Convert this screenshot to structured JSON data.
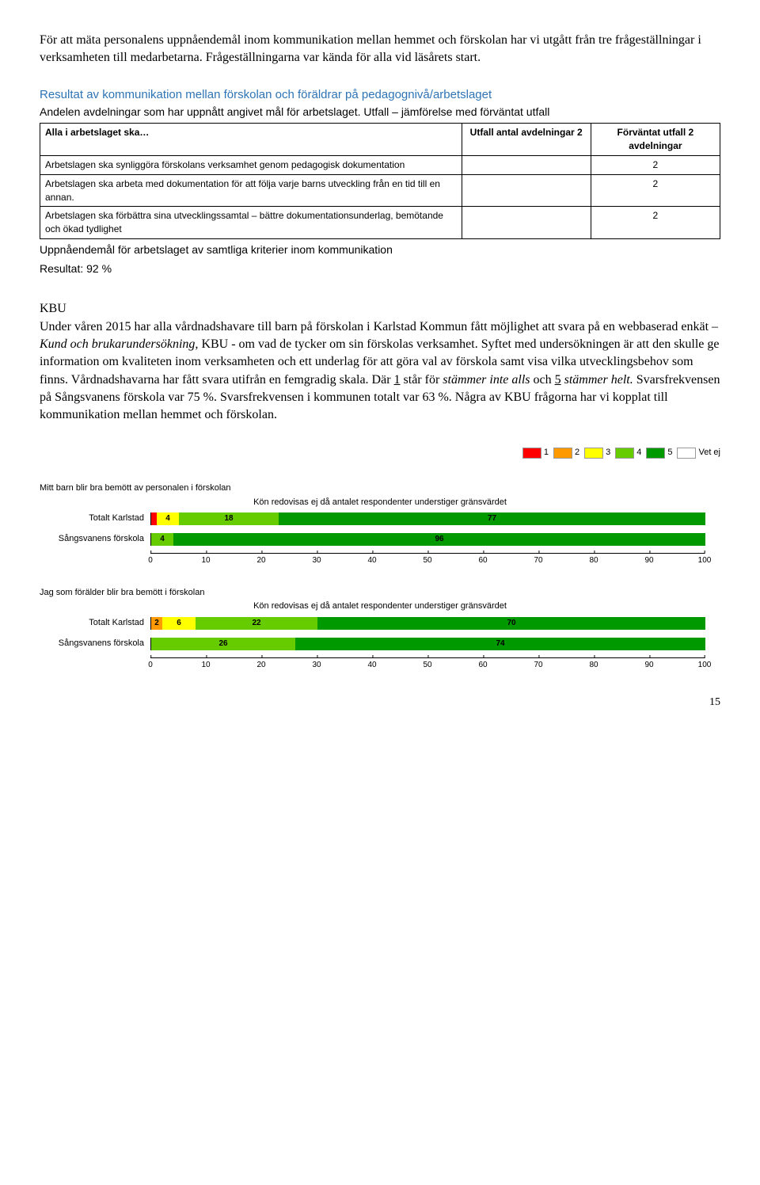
{
  "intro_para": "För att mäta personalens uppnåendemål inom kommunikation mellan hemmet och förskolan har vi utgått från tre frågeställningar i verksamheten till medarbetarna. Frågeställningarna var kända för alla vid läsårets start.",
  "table_heading": "Resultat av kommunikation mellan förskolan och föräldrar på pedagognivå/arbetslaget",
  "table_subline": "Andelen avdelningar som har uppnått angivet mål för arbetslaget. Utfall – jämförelse med förväntat utfall",
  "table": {
    "header": {
      "c1": "Alla i arbetslaget ska…",
      "c2": "Utfall antal avdelningar 2",
      "c3": "Förväntat utfall 2 avdelningar"
    },
    "rows": [
      {
        "c1": "Arbetslagen ska synliggöra förskolans verksamhet genom pedagogisk dokumentation",
        "c2": "",
        "c3": "2"
      },
      {
        "c1": "Arbetslagen ska arbeta med dokumentation för att följa varje barns utveckling från en tid till en annan.",
        "c2": "",
        "c3": "2"
      },
      {
        "c1": "Arbetslagen ska förbättra sina utvecklingssamtal – bättre dokumentationsunderlag, bemötande och ökad tydlighet",
        "c2": "",
        "c3": "2"
      }
    ]
  },
  "result_line1": "Uppnåendemål för arbetslaget av samtliga kriterier inom kommunikation",
  "result_line2": "Resultat: 92 %",
  "kbu": {
    "label": "KBU",
    "text_parts": [
      "Under våren 2015 har alla vårdnadshavare till barn på förskolan i Karlstad Kommun fått möjlighet att svara på en webbaserad enkät – ",
      "Kund och brukarundersökning, ",
      "KBU - om vad de tycker om sin förskolas verksamhet. Syftet med undersökningen är att den skulle ge information om kvaliteten inom verksamheten och ett underlag för att göra val av förskola samt visa vilka utvecklingsbehov som finns. Vårdnadshavarna har fått svara utifrån en femgradig skala. Där ",
      "1",
      " står för ",
      "stämmer inte alls",
      " och ",
      "5",
      " ",
      "stämmer helt.",
      " Svarsfrekvensen på Sångsvanens förskola var 75 %. Svarsfrekvensen i kommunen totalt var 63 %. Några av KBU frågorna har vi kopplat till kommunikation mellan hemmet och förskolan."
    ]
  },
  "legend": {
    "items": [
      {
        "label": "1",
        "color": "#ff0000"
      },
      {
        "label": "2",
        "color": "#ff9900"
      },
      {
        "label": "3",
        "color": "#ffff00"
      },
      {
        "label": "4",
        "color": "#66cc00"
      },
      {
        "label": "5",
        "color": "#009900"
      }
    ],
    "vet_ej": "Vet ej",
    "vet_ej_color": "#ffffff"
  },
  "chart1": {
    "question": "Mitt barn blir bra bemött av personalen i förskolan",
    "subtitle": "Kön redovisas ej då antalet respondenter understiger gränsvärdet",
    "rows": [
      {
        "label": "Totalt Karlstad",
        "segments": [
          {
            "value": 1,
            "color": "#ff0000",
            "show": false
          },
          {
            "value": 4,
            "color": "#ffff00",
            "show": true
          },
          {
            "value": 18,
            "color": "#66cc00",
            "show": true
          },
          {
            "value": 77,
            "color": "#009900",
            "show": true
          }
        ]
      },
      {
        "label": "Sångsvanens förskola",
        "segments": [
          {
            "value": 4,
            "color": "#66cc00",
            "show": true
          },
          {
            "value": 96,
            "color": "#009900",
            "show": true
          }
        ]
      }
    ],
    "axis": [
      0,
      10,
      20,
      30,
      40,
      50,
      60,
      70,
      80,
      90,
      100
    ]
  },
  "chart2": {
    "question": "Jag som förälder blir bra bemött i förskolan",
    "subtitle": "Kön redovisas ej då antalet respondenter understiger gränsvärdet",
    "rows": [
      {
        "label": "Totalt Karlstad",
        "segments": [
          {
            "value": 2,
            "color": "#ff9900",
            "show": true
          },
          {
            "value": 6,
            "color": "#ffff00",
            "show": true
          },
          {
            "value": 22,
            "color": "#66cc00",
            "show": true
          },
          {
            "value": 70,
            "color": "#009900",
            "show": true
          }
        ]
      },
      {
        "label": "Sångsvanens förskola",
        "segments": [
          {
            "value": 26,
            "color": "#66cc00",
            "show": true
          },
          {
            "value": 74,
            "color": "#009900",
            "show": true
          }
        ]
      }
    ],
    "axis": [
      0,
      10,
      20,
      30,
      40,
      50,
      60,
      70,
      80,
      90,
      100
    ]
  },
  "page_number": "15"
}
